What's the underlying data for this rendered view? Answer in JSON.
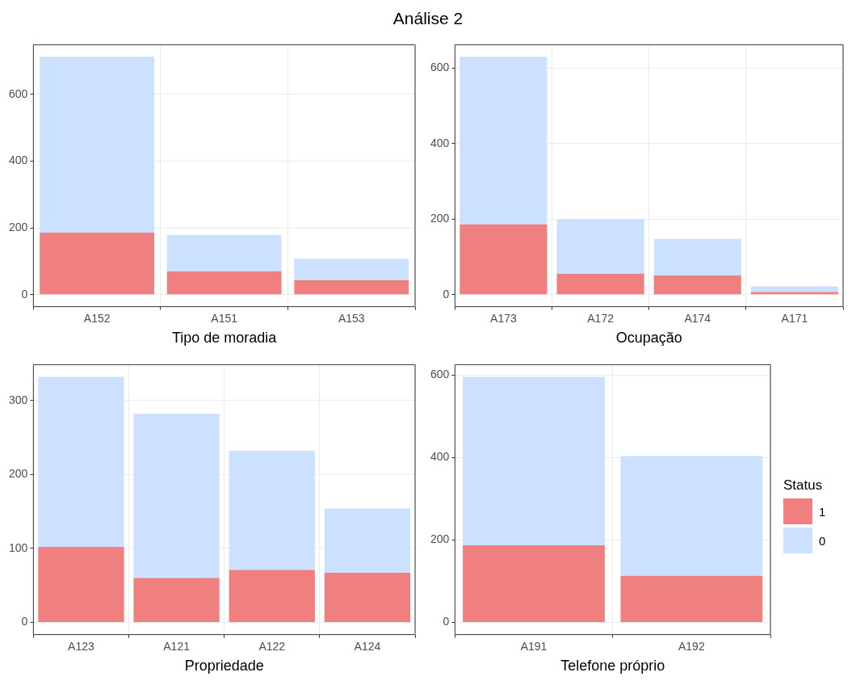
{
  "chart_data": [
    {
      "type": "bar",
      "title": "Análise 2",
      "xlabel": "Tipo de moradia",
      "stacked": true,
      "grid": true,
      "categories": [
        "A152",
        "A151",
        "A153"
      ],
      "series": [
        {
          "color": "#f08080",
          "values": [
            186,
            70,
            44
          ]
        },
        {
          "color": "#cce0ff",
          "values": [
            527,
            109,
            64
          ]
        }
      ],
      "ylim": [
        -35.65,
        748.65
      ],
      "yticks": [
        0,
        200,
        400,
        600
      ]
    },
    {
      "type": "bar",
      "xlabel": "Ocupação",
      "stacked": true,
      "grid": true,
      "categories": [
        "A173",
        "A172",
        "A174",
        "A171"
      ],
      "series": [
        {
          "color": "#f08080",
          "values": [
            186,
            56,
            51,
            7
          ]
        },
        {
          "color": "#cce0ff",
          "values": [
            444,
            144,
            97,
            15
          ]
        }
      ],
      "ylim": [
        -31.5,
        661.5
      ],
      "yticks": [
        0,
        200,
        400,
        600
      ]
    },
    {
      "type": "bar",
      "xlabel": "Propriedade",
      "stacked": true,
      "grid": true,
      "categories": [
        "A123",
        "A121",
        "A122",
        "A124"
      ],
      "series": [
        {
          "color": "#f08080",
          "values": [
            102,
            60,
            71,
            67
          ]
        },
        {
          "color": "#cce0ff",
          "values": [
            230,
            222,
            161,
            87
          ]
        }
      ],
      "ylim": [
        -16.6,
        348.6
      ],
      "yticks": [
        0,
        100,
        200,
        300
      ]
    },
    {
      "type": "bar",
      "xlabel": "Telefone próprio",
      "stacked": true,
      "grid": true,
      "legend": "right",
      "legend_title": "Status",
      "categories": [
        "A191",
        "A192"
      ],
      "series": [
        {
          "name": "1",
          "color": "#f08080",
          "values": [
            187,
            113
          ]
        },
        {
          "name": "0",
          "color": "#cce0ff",
          "values": [
            409,
            291
          ]
        }
      ],
      "ylim": [
        -29.8,
        625.8
      ],
      "yticks": [
        0,
        200,
        400,
        600
      ]
    }
  ]
}
